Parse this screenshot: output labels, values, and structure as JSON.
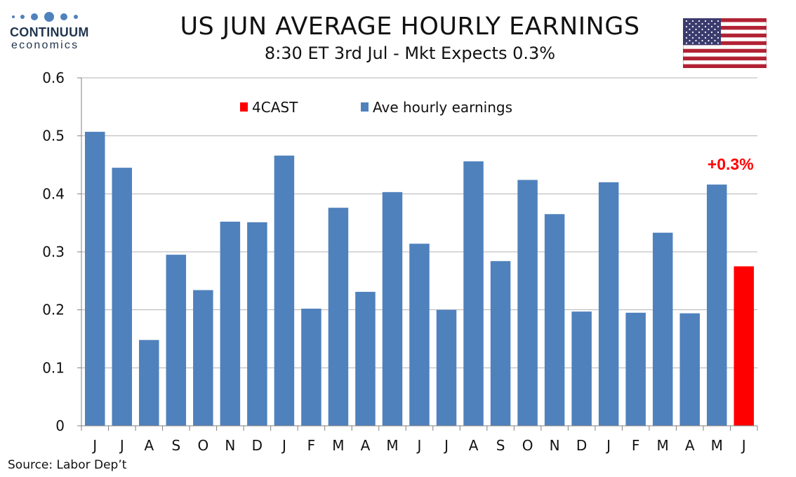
{
  "header": {
    "title": "US JUN AVERAGE HOURLY EARNINGS",
    "subtitle": "8:30 ET 3rd Jul - Mkt Expects 0.3%"
  },
  "logo": {
    "name": "CONTINUUM",
    "sub": "economics",
    "color": "#22364f"
  },
  "flag": {
    "country": "US",
    "icon": "us-flag-icon"
  },
  "source": "Source: Labor Dep’t",
  "colors": {
    "actual": "#4f81bd",
    "forecast": "#ff0000",
    "grid": "#b3b3b3",
    "axis": "#808080"
  },
  "chart_data": {
    "type": "bar",
    "title": "",
    "xlabel": "",
    "ylabel": "",
    "ylim": [
      0,
      0.6
    ],
    "yticks": [
      "0",
      "0.1",
      "0.2",
      "0.3",
      "0.4",
      "0.5",
      "0.6"
    ],
    "grid": true,
    "legend_position": "top",
    "categories": [
      "J",
      "J",
      "A",
      "S",
      "O",
      "N",
      "D",
      "J",
      "F",
      "M",
      "A",
      "M",
      "J",
      "J",
      "A",
      "S",
      "O",
      "N",
      "D",
      "J",
      "F",
      "M",
      "A",
      "M",
      "J"
    ],
    "series": [
      {
        "name": "Ave hourly earnings",
        "color": "#4f81bd",
        "values": [
          0.507,
          0.445,
          0.148,
          0.295,
          0.234,
          0.352,
          0.351,
          0.466,
          0.202,
          0.376,
          0.231,
          0.403,
          0.314,
          0.2,
          0.456,
          0.284,
          0.424,
          0.365,
          0.197,
          0.42,
          0.195,
          0.333,
          0.194,
          0.416,
          null
        ]
      },
      {
        "name": "4CAST",
        "color": "#ff0000",
        "values": [
          null,
          null,
          null,
          null,
          null,
          null,
          null,
          null,
          null,
          null,
          null,
          null,
          null,
          null,
          null,
          null,
          null,
          null,
          null,
          null,
          null,
          null,
          null,
          null,
          0.275
        ]
      }
    ],
    "annotations": [
      {
        "text": "+0.3%",
        "category_index": 24,
        "color": "#ff0000"
      }
    ]
  }
}
